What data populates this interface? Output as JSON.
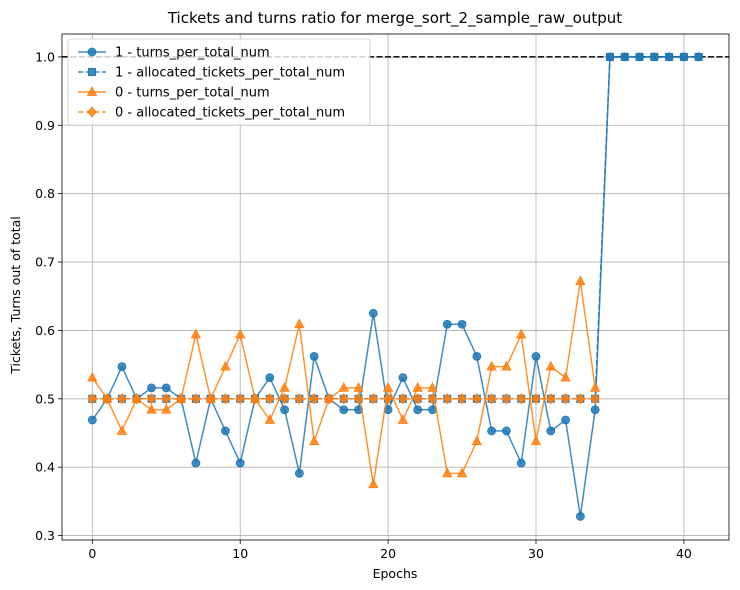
{
  "chart_data": {
    "type": "line",
    "title": "Tickets and turns ratio for merge_sort_2_sample_raw_output",
    "xlabel": "Epochs",
    "ylabel": "Tickets, Turns out of total",
    "xlim": [
      -2.05,
      43.05
    ],
    "ylim": [
      0.2935,
      1.0335
    ],
    "xticks": [
      0,
      10,
      20,
      30,
      40
    ],
    "yticks": [
      0.3,
      0.4,
      0.5,
      0.6,
      0.7,
      0.8,
      0.9,
      1.0
    ],
    "ytick_labels": [
      "0.3",
      "0.4",
      "0.5",
      "0.6",
      "0.7",
      "0.8",
      "0.9",
      "1.0"
    ],
    "grid": true,
    "legend_position": "top-left",
    "reference_line": {
      "y": 1.0,
      "style": "dashed",
      "color": "#000000"
    },
    "series": [
      {
        "name": "1 - turns_per_total_num",
        "color": "#1f77b4",
        "marker": "circle",
        "linestyle": "solid",
        "x": [
          0,
          1,
          2,
          3,
          4,
          5,
          6,
          7,
          8,
          9,
          10,
          11,
          12,
          13,
          14,
          15,
          16,
          17,
          18,
          19,
          20,
          21,
          22,
          23,
          24,
          25,
          26,
          27,
          28,
          29,
          30,
          31,
          32,
          33,
          34,
          35,
          36,
          37,
          38,
          39,
          40,
          41
        ],
        "values": [
          0.469,
          0.5,
          0.547,
          0.5,
          0.516,
          0.516,
          0.5,
          0.406,
          0.5,
          0.453,
          0.406,
          0.5,
          0.531,
          0.484,
          0.391,
          0.562,
          0.5,
          0.484,
          0.484,
          0.625,
          0.484,
          0.531,
          0.484,
          0.484,
          0.609,
          0.609,
          0.562,
          0.453,
          0.453,
          0.406,
          0.562,
          0.453,
          0.469,
          0.328,
          0.484,
          1.0,
          1.0,
          1.0,
          1.0,
          1.0,
          1.0,
          1.0
        ]
      },
      {
        "name": "1 - allocated_tickets_per_total_num",
        "color": "#1f77b4",
        "marker": "square",
        "linestyle": "dashed",
        "x": [
          0,
          1,
          2,
          3,
          4,
          5,
          6,
          7,
          8,
          9,
          10,
          11,
          12,
          13,
          14,
          15,
          16,
          17,
          18,
          19,
          20,
          21,
          22,
          23,
          24,
          25,
          26,
          27,
          28,
          29,
          30,
          31,
          32,
          33,
          34,
          35,
          36,
          37,
          38,
          39,
          40,
          41
        ],
        "values": [
          0.5,
          0.5,
          0.5,
          0.5,
          0.5,
          0.5,
          0.5,
          0.5,
          0.5,
          0.5,
          0.5,
          0.5,
          0.5,
          0.5,
          0.5,
          0.5,
          0.5,
          0.5,
          0.5,
          0.5,
          0.5,
          0.5,
          0.5,
          0.5,
          0.5,
          0.5,
          0.5,
          0.5,
          0.5,
          0.5,
          0.5,
          0.5,
          0.5,
          0.5,
          0.5,
          1.0,
          1.0,
          1.0,
          1.0,
          1.0,
          1.0,
          1.0
        ]
      },
      {
        "name": "0 - turns_per_total_num",
        "color": "#ff7f0e",
        "marker": "triangle",
        "linestyle": "solid",
        "x": [
          0,
          1,
          2,
          3,
          4,
          5,
          6,
          7,
          8,
          9,
          10,
          11,
          12,
          13,
          14,
          15,
          16,
          17,
          18,
          19,
          20,
          21,
          22,
          23,
          24,
          25,
          26,
          27,
          28,
          29,
          30,
          31,
          32,
          33,
          34
        ],
        "values": [
          0.531,
          0.5,
          0.453,
          0.5,
          0.484,
          0.484,
          0.5,
          0.594,
          0.5,
          0.547,
          0.594,
          0.5,
          0.469,
          0.516,
          0.609,
          0.438,
          0.5,
          0.516,
          0.516,
          0.375,
          0.516,
          0.469,
          0.516,
          0.516,
          0.391,
          0.391,
          0.438,
          0.547,
          0.547,
          0.594,
          0.438,
          0.547,
          0.531,
          0.672,
          0.516
        ]
      },
      {
        "name": "0 - allocated_tickets_per_total_num",
        "color": "#ff7f0e",
        "marker": "diamond",
        "linestyle": "dashed",
        "x": [
          0,
          1,
          2,
          3,
          4,
          5,
          6,
          7,
          8,
          9,
          10,
          11,
          12,
          13,
          14,
          15,
          16,
          17,
          18,
          19,
          20,
          21,
          22,
          23,
          24,
          25,
          26,
          27,
          28,
          29,
          30,
          31,
          32,
          33,
          34
        ],
        "values": [
          0.5,
          0.5,
          0.5,
          0.5,
          0.5,
          0.5,
          0.5,
          0.5,
          0.5,
          0.5,
          0.5,
          0.5,
          0.5,
          0.5,
          0.5,
          0.5,
          0.5,
          0.5,
          0.5,
          0.5,
          0.5,
          0.5,
          0.5,
          0.5,
          0.5,
          0.5,
          0.5,
          0.5,
          0.5,
          0.5,
          0.5,
          0.5,
          0.5,
          0.5,
          0.5
        ]
      }
    ]
  }
}
